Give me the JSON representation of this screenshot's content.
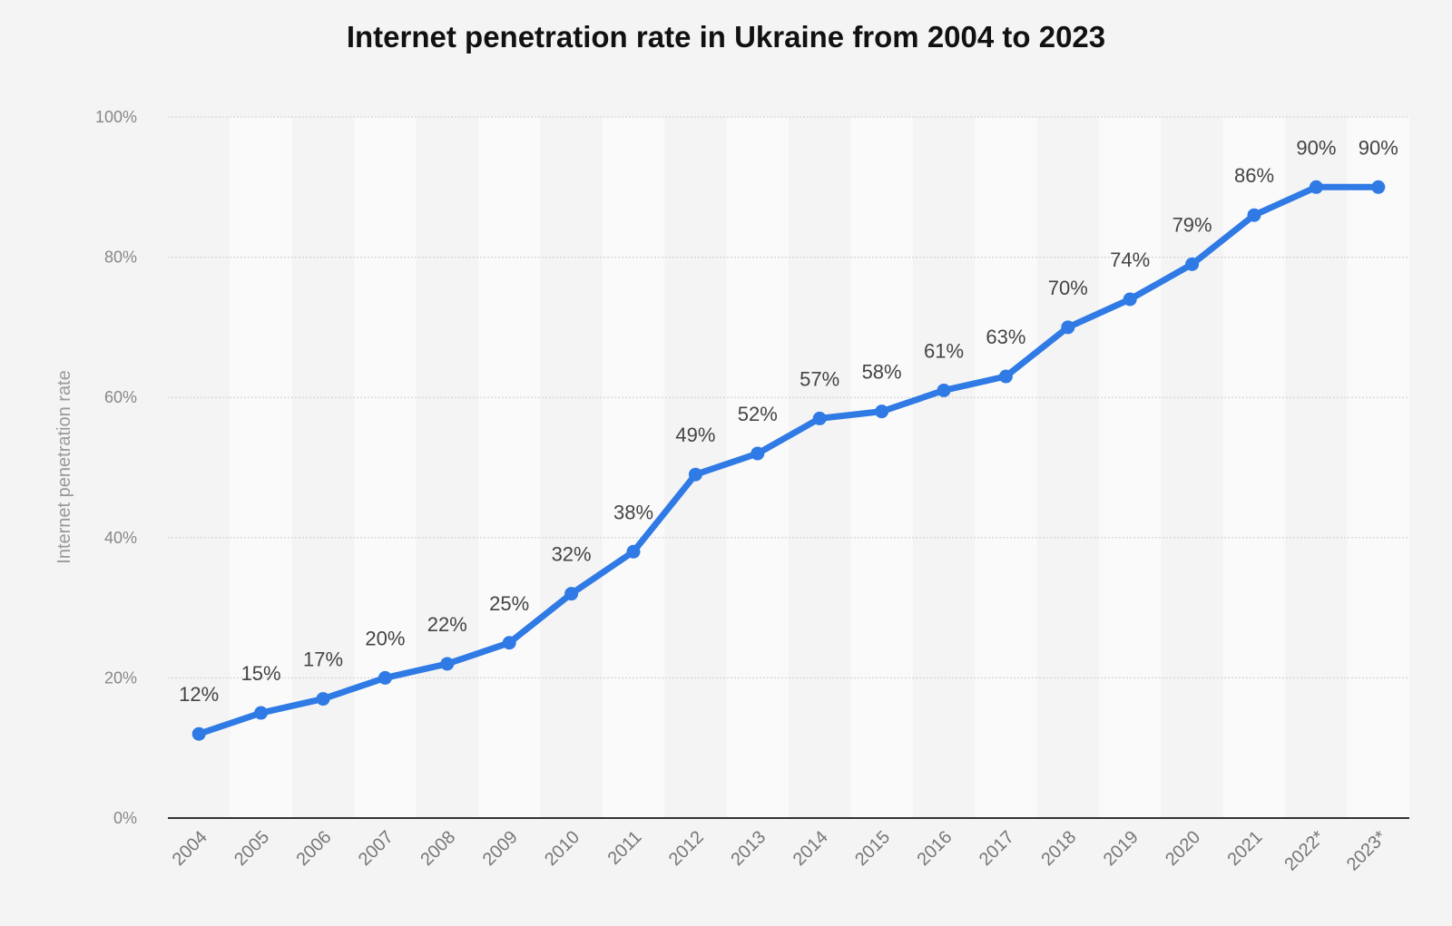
{
  "chart_data": {
    "type": "line",
    "title": "Internet penetration rate in Ukraine from 2004 to 2023",
    "xlabel": "",
    "ylabel": "Internet penetration rate",
    "categories": [
      "2004",
      "2005",
      "2006",
      "2007",
      "2008",
      "2009",
      "2010",
      "2011",
      "2012",
      "2013",
      "2014",
      "2015",
      "2016",
      "2017",
      "2018",
      "2019",
      "2020",
      "2021",
      "2022*",
      "2023*"
    ],
    "series": [
      {
        "name": "Internet penetration rate",
        "values": [
          12,
          15,
          17,
          20,
          22,
          25,
          32,
          38,
          49,
          52,
          57,
          58,
          61,
          63,
          70,
          74,
          79,
          86,
          90,
          90
        ],
        "labels": [
          "12%",
          "15%",
          "17%",
          "20%",
          "22%",
          "25%",
          "32%",
          "38%",
          "49%",
          "52%",
          "57%",
          "58%",
          "61%",
          "63%",
          "70%",
          "74%",
          "79%",
          "86%",
          "90%",
          "90%"
        ]
      }
    ],
    "ylim": [
      0,
      100
    ],
    "yticks": [
      0,
      20,
      40,
      60,
      80,
      100
    ],
    "ytick_labels": [
      "0%",
      "20%",
      "40%",
      "60%",
      "80%",
      "100%"
    ],
    "grid": true,
    "legend": "none",
    "colors": {
      "series": "#2f7ae5",
      "background": "#f4f4f4",
      "band": "#fafafa"
    }
  }
}
